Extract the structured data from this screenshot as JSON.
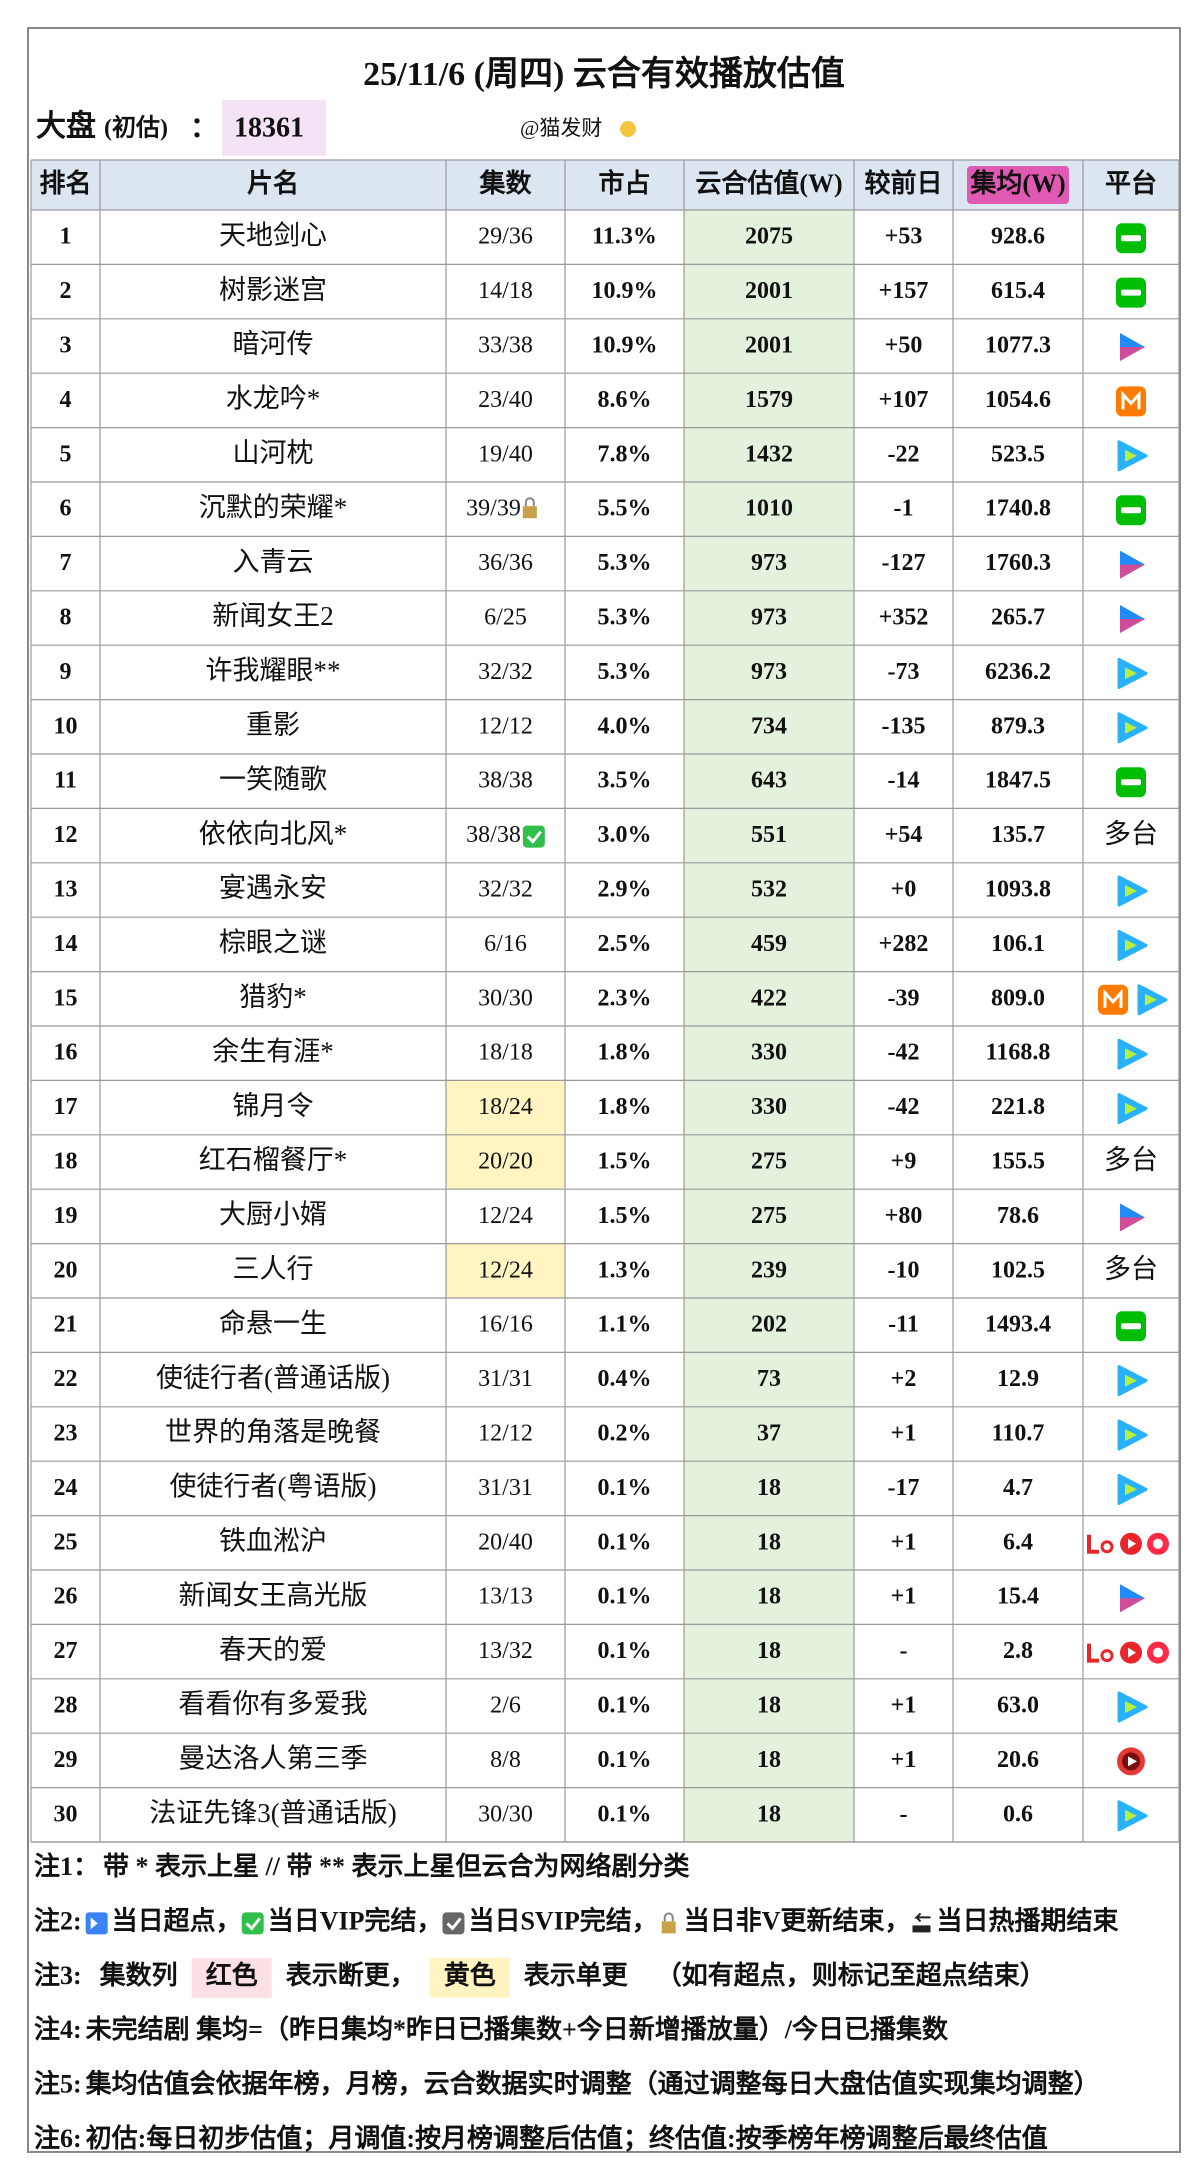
{
  "header": {
    "title": "25/11/6 (周四) 云合有效播放估值",
    "market_label": "大盘",
    "market_qualifier": "(初估)",
    "market_sep": "：",
    "market_value": "18361",
    "watermark": "@猫发财"
  },
  "table": {
    "columns": [
      "排名",
      "片名",
      "集数",
      "市占",
      "云合估值(W)",
      "较前日",
      "集均(W)",
      "平台"
    ],
    "rows": [
      [
        "1",
        "天地剑心",
        "29/36",
        "11.3%",
        "2075",
        "+53",
        "928.6",
        null
      ],
      [
        "2",
        "树影迷宫",
        "14/18",
        "10.9%",
        "2001",
        "+157",
        "615.4",
        null
      ],
      [
        "3",
        "暗河传",
        "33/38",
        "10.9%",
        "2001",
        "+50",
        "1077.3",
        null
      ],
      [
        "4",
        "水龙吟*",
        "23/40",
        "8.6%",
        "1579",
        "+107",
        "1054.6",
        null
      ],
      [
        "5",
        "山河枕",
        "19/40",
        "7.8%",
        "1432",
        "-22",
        "523.5",
        null
      ],
      [
        "6",
        "沉默的荣耀*",
        "39/39",
        "5.5%",
        "1010",
        "-1",
        "1740.8",
        null
      ],
      [
        "7",
        "入青云",
        "36/36",
        "5.3%",
        "973",
        "-127",
        "1760.3",
        null
      ],
      [
        "8",
        "新闻女王2",
        "6/25",
        "5.3%",
        "973",
        "+352",
        "265.7",
        null
      ],
      [
        "9",
        "许我耀眼**",
        "32/32",
        "5.3%",
        "973",
        "-73",
        "6236.2",
        null
      ],
      [
        "10",
        "重影",
        "12/12",
        "4.0%",
        "734",
        "-135",
        "879.3",
        null
      ],
      [
        "11",
        "一笑随歌",
        "38/38",
        "3.5%",
        "643",
        "-14",
        "1847.5",
        null
      ],
      [
        "12",
        "依依向北风*",
        "38/38",
        "3.0%",
        "551",
        "+54",
        "135.7",
        "多台"
      ],
      [
        "13",
        "宴遇永安",
        "32/32",
        "2.9%",
        "532",
        "+0",
        "1093.8",
        null
      ],
      [
        "14",
        "棕眼之谜",
        "6/16",
        "2.5%",
        "459",
        "+282",
        "106.1",
        null
      ],
      [
        "15",
        "猎豹*",
        "30/30",
        "2.3%",
        "422",
        "-39",
        "809.0",
        null
      ],
      [
        "16",
        "余生有涯*",
        "18/18",
        "1.8%",
        "330",
        "-42",
        "1168.8",
        null
      ],
      [
        "17",
        "锦月令",
        "18/24",
        "1.8%",
        "330",
        "-42",
        "221.8",
        null
      ],
      [
        "18",
        "红石榴餐厅*",
        "20/20",
        "1.5%",
        "275",
        "+9",
        "155.5",
        "多台"
      ],
      [
        "19",
        "大厨小婿",
        "12/24",
        "1.5%",
        "275",
        "+80",
        "78.6",
        null
      ],
      [
        "20",
        "三人行",
        "12/24",
        "1.3%",
        "239",
        "-10",
        "102.5",
        "多台"
      ],
      [
        "21",
        "命悬一生",
        "16/16",
        "1.1%",
        "202",
        "-11",
        "1493.4",
        null
      ],
      [
        "22",
        "使徒行者(普通话版)",
        "31/31",
        "0.4%",
        "73",
        "+2",
        "12.9",
        null
      ],
      [
        "23",
        "世界的角落是晚餐",
        "12/12",
        "0.2%",
        "37",
        "+1",
        "110.7",
        null
      ],
      [
        "24",
        "使徒行者(粤语版)",
        "31/31",
        "0.1%",
        "18",
        "-17",
        "4.7",
        null
      ],
      [
        "25",
        "铁血淞沪",
        "20/40",
        "0.1%",
        "18",
        "+1",
        "6.4",
        null
      ],
      [
        "26",
        "新闻女王高光版",
        "13/13",
        "0.1%",
        "18",
        "+1",
        "15.4",
        null
      ],
      [
        "27",
        "春天的爱",
        "13/32",
        "0.1%",
        "18",
        "-",
        "2.8",
        null
      ],
      [
        "28",
        "看看你有多爱我",
        "2/6",
        "0.1%",
        "18",
        "+1",
        "63.0",
        null
      ],
      [
        "29",
        "曼达洛人第三季",
        "8/8",
        "0.1%",
        "18",
        "+1",
        "20.6",
        null
      ],
      [
        "30",
        "法证先锋3(普通话版)",
        "30/30",
        "0.1%",
        "18",
        "-",
        "0.6",
        null
      ]
    ]
  },
  "notes": [
    {
      "label": "注1：",
      "parts": [
        "带 * 表示上星 // 带 ** 表示上星但云合为网络剧分类"
      ]
    },
    {
      "label": "注2:",
      "parts": [
        "当日超点，",
        "当日VIP完结，",
        "当日SVIP完结，",
        "当日非V更新结束，",
        "当日热播期结束"
      ]
    },
    {
      "label": "注3:",
      "parts": [
        "集数列",
        "红色",
        "表示断更，",
        "黄色",
        "表示单更",
        "（如有超点，则标记至超点结束）"
      ]
    },
    {
      "label": "注4:",
      "parts": [
        "未完结剧 集均=（昨日集均*昨日已播集数+今日新增播放量）/今日已播集数"
      ]
    },
    {
      "label": "注5:",
      "parts": [
        "集均估值会依据年榜，月榜，云合数据实时调整（通过调整每日大盘估值实现集均调整）"
      ]
    },
    {
      "label": "注6:",
      "parts": [
        "初估:每日初步估值；月调值:按月榜调整后估值；终估值:按季榜年榜调整后最终估值"
      ]
    }
  ]
}
